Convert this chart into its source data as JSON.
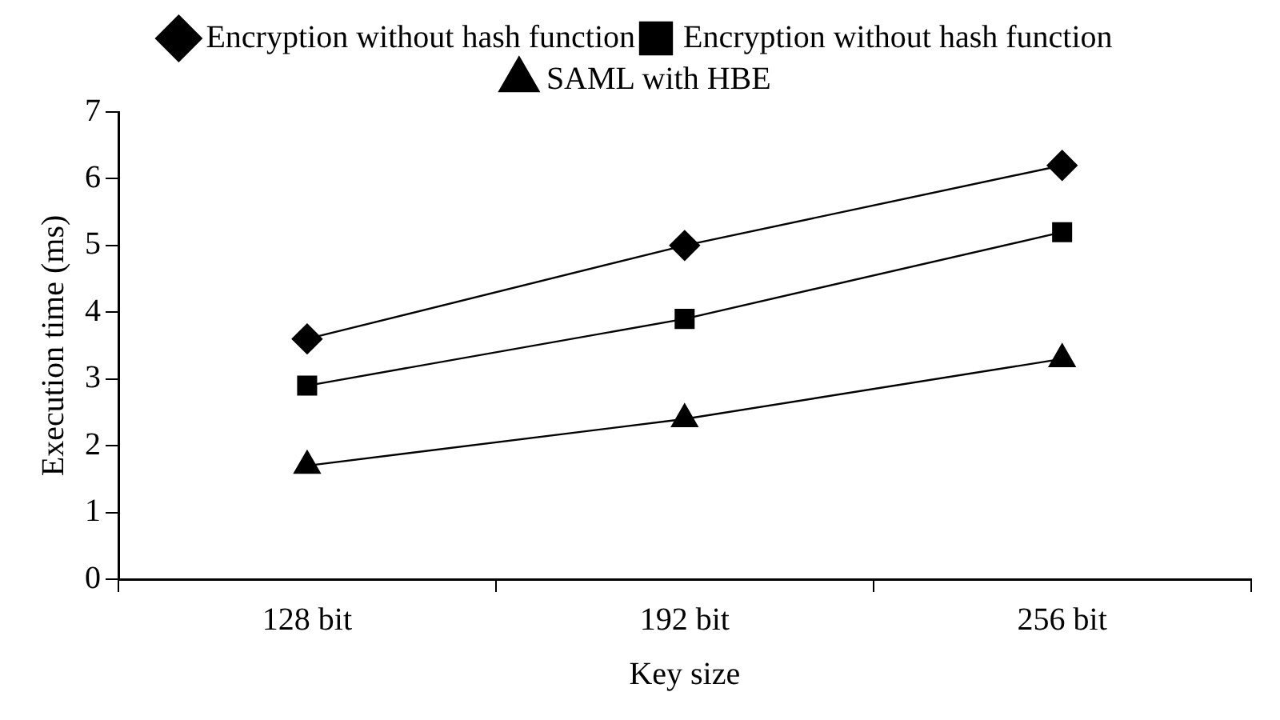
{
  "chart_data": {
    "type": "line",
    "xlabel": "Key size",
    "ylabel": "Execution time (ms)",
    "categories": [
      "128 bit",
      "192 bit",
      "256 bit"
    ],
    "series": [
      {
        "name": "Encryption without hash function",
        "color": "#000000",
        "marker": "diamond",
        "values": [
          3.6,
          5.0,
          6.2
        ]
      },
      {
        "name": "Encryption without hash function",
        "color": "#000000",
        "marker": "square",
        "values": [
          2.9,
          3.9,
          5.2
        ]
      },
      {
        "name": "SAML with HBE",
        "color": "#000000",
        "marker": "triangle",
        "values": [
          1.7,
          2.4,
          3.3
        ]
      }
    ],
    "ylim": [
      0,
      7
    ],
    "yticks": [
      0,
      1,
      2,
      3,
      4,
      5,
      6,
      7
    ],
    "grid": false,
    "legend": "top",
    "line_style": "solid"
  }
}
